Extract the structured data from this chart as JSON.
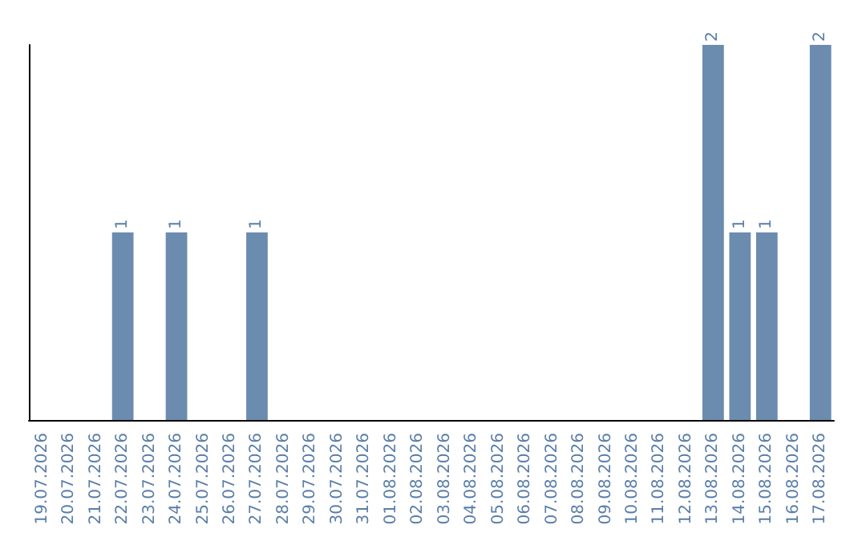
{
  "chart_data": {
    "type": "bar",
    "categories": [
      "19.07.2026",
      "20.07.2026",
      "21.07.2026",
      "22.07.2026",
      "23.07.2026",
      "24.07.2026",
      "25.07.2026",
      "26.07.2026",
      "27.07.2026",
      "28.07.2026",
      "29.07.2026",
      "30.07.2026",
      "31.07.2026",
      "01.08.2026",
      "02.08.2026",
      "03.08.2026",
      "04.08.2026",
      "05.08.2026",
      "06.08.2026",
      "07.08.2026",
      "08.08.2026",
      "09.08.2026",
      "10.08.2026",
      "11.08.2026",
      "12.08.2026",
      "13.08.2026",
      "14.08.2026",
      "15.08.2026",
      "16.08.2026",
      "17.08.2026"
    ],
    "values": [
      0,
      0,
      0,
      1,
      0,
      1,
      0,
      0,
      1,
      0,
      0,
      0,
      0,
      0,
      0,
      0,
      0,
      0,
      0,
      0,
      0,
      0,
      0,
      0,
      0,
      2,
      1,
      1,
      0,
      2
    ],
    "value_labels": [
      null,
      null,
      null,
      "1",
      null,
      "1",
      null,
      null,
      "1",
      null,
      null,
      null,
      null,
      null,
      null,
      null,
      null,
      null,
      null,
      null,
      null,
      null,
      null,
      null,
      null,
      "2",
      "1",
      "1",
      null,
      "2"
    ],
    "color": "#6b8cae",
    "tick_labels": "x",
    "grid": false
  }
}
